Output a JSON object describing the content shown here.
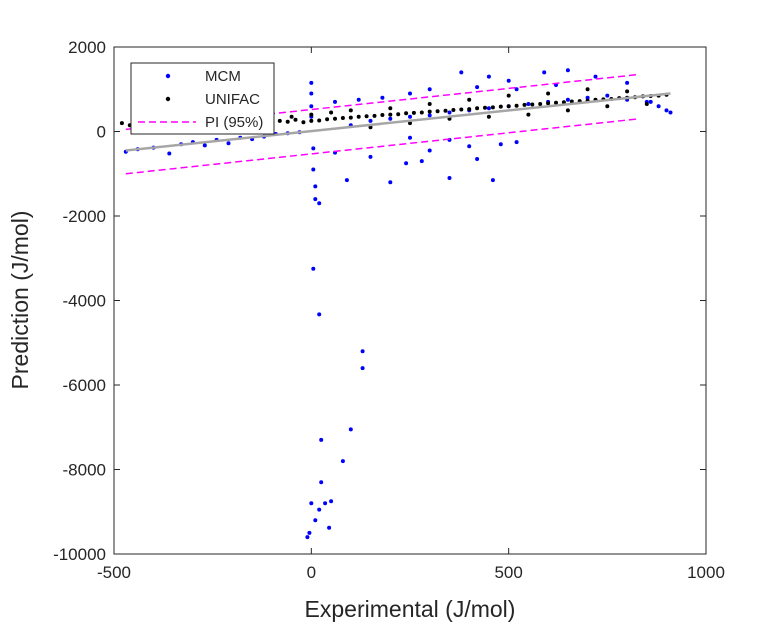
{
  "chart_data": {
    "type": "scatter",
    "xlabel": "Experimental (J/mol)",
    "ylabel": "Prediction (J/mol)",
    "xlim": [
      -500,
      1000
    ],
    "ylim": [
      -10000,
      2000
    ],
    "xticks": [
      -500,
      0,
      500,
      1000
    ],
    "yticks": [
      -10000,
      -8000,
      -6000,
      -4000,
      -2000,
      0,
      2000
    ],
    "legend_position": "top-left",
    "grid": false,
    "series": [
      {
        "name": "MCM",
        "color": "#0000ff",
        "marker": "dot",
        "points": [
          [
            -470,
            -480
          ],
          [
            -440,
            -420
          ],
          [
            -400,
            -380
          ],
          [
            -360,
            -520
          ],
          [
            -330,
            -300
          ],
          [
            -300,
            -250
          ],
          [
            -270,
            -330
          ],
          [
            -240,
            -200
          ],
          [
            -210,
            -280
          ],
          [
            -180,
            -150
          ],
          [
            -150,
            -180
          ],
          [
            -120,
            -120
          ],
          [
            -90,
            -60
          ],
          [
            -60,
            -40
          ],
          [
            -30,
            -20
          ],
          [
            0,
            1150
          ],
          [
            0,
            900
          ],
          [
            0,
            600
          ],
          [
            0,
            350
          ],
          [
            5,
            -400
          ],
          [
            5,
            -900
          ],
          [
            10,
            -1600
          ],
          [
            10,
            -1300
          ],
          [
            20,
            -1700
          ],
          [
            5,
            -3250
          ],
          [
            20,
            -4330
          ],
          [
            130,
            -5200
          ],
          [
            130,
            -5600
          ],
          [
            100,
            -7050
          ],
          [
            25,
            -7300
          ],
          [
            80,
            -7800
          ],
          [
            25,
            -8300
          ],
          [
            0,
            -8800
          ],
          [
            10,
            -9200
          ],
          [
            20,
            -8950
          ],
          [
            35,
            -8800
          ],
          [
            50,
            -8750
          ],
          [
            45,
            -9380
          ],
          [
            -10,
            -9600
          ],
          [
            -5,
            -9500
          ],
          [
            60,
            -500
          ],
          [
            90,
            -1150
          ],
          [
            150,
            -600
          ],
          [
            200,
            -1200
          ],
          [
            240,
            -750
          ],
          [
            280,
            -700
          ],
          [
            300,
            -450
          ],
          [
            350,
            -1100
          ],
          [
            420,
            -650
          ],
          [
            460,
            -1150
          ],
          [
            100,
            150
          ],
          [
            150,
            250
          ],
          [
            200,
            300
          ],
          [
            250,
            350
          ],
          [
            300,
            380
          ],
          [
            350,
            450
          ],
          [
            400,
            500
          ],
          [
            450,
            550
          ],
          [
            500,
            600
          ],
          [
            550,
            650
          ],
          [
            600,
            700
          ],
          [
            650,
            750
          ],
          [
            700,
            800
          ],
          [
            750,
            850
          ],
          [
            800,
            750
          ],
          [
            850,
            700
          ],
          [
            900,
            500
          ],
          [
            910,
            450
          ],
          [
            380,
            1400
          ],
          [
            450,
            1300
          ],
          [
            500,
            1200
          ],
          [
            590,
            1400
          ],
          [
            650,
            1450
          ],
          [
            720,
            1300
          ],
          [
            800,
            1150
          ],
          [
            860,
            700
          ],
          [
            880,
            600
          ],
          [
            300,
            1000
          ],
          [
            250,
            900
          ],
          [
            180,
            800
          ],
          [
            120,
            750
          ],
          [
            60,
            700
          ],
          [
            420,
            1050
          ],
          [
            520,
            1000
          ],
          [
            620,
            1100
          ],
          [
            480,
            -300
          ],
          [
            520,
            -250
          ],
          [
            400,
            -350
          ],
          [
            350,
            -200
          ],
          [
            250,
            -150
          ]
        ]
      },
      {
        "name": "UNIFAC",
        "color": "#000000",
        "marker": "dot",
        "points": [
          [
            -480,
            200
          ],
          [
            -460,
            150
          ],
          [
            -440,
            220
          ],
          [
            -420,
            180
          ],
          [
            -400,
            240
          ],
          [
            -380,
            160
          ],
          [
            -360,
            210
          ],
          [
            -340,
            170
          ],
          [
            -320,
            230
          ],
          [
            -300,
            190
          ],
          [
            -280,
            250
          ],
          [
            -260,
            150
          ],
          [
            -240,
            220
          ],
          [
            -220,
            200
          ],
          [
            -200,
            260
          ],
          [
            -180,
            180
          ],
          [
            -160,
            240
          ],
          [
            -140,
            210
          ],
          [
            -120,
            270
          ],
          [
            -100,
            200
          ],
          [
            -80,
            250
          ],
          [
            -60,
            230
          ],
          [
            -40,
            280
          ],
          [
            -20,
            220
          ],
          [
            0,
            250
          ],
          [
            20,
            260
          ],
          [
            40,
            290
          ],
          [
            60,
            300
          ],
          [
            80,
            320
          ],
          [
            100,
            330
          ],
          [
            120,
            350
          ],
          [
            140,
            360
          ],
          [
            160,
            370
          ],
          [
            180,
            390
          ],
          [
            200,
            400
          ],
          [
            220,
            410
          ],
          [
            240,
            430
          ],
          [
            260,
            440
          ],
          [
            280,
            450
          ],
          [
            300,
            470
          ],
          [
            320,
            480
          ],
          [
            340,
            490
          ],
          [
            360,
            510
          ],
          [
            380,
            520
          ],
          [
            400,
            530
          ],
          [
            420,
            550
          ],
          [
            440,
            560
          ],
          [
            460,
            570
          ],
          [
            480,
            590
          ],
          [
            500,
            600
          ],
          [
            520,
            610
          ],
          [
            540,
            630
          ],
          [
            560,
            640
          ],
          [
            580,
            650
          ],
          [
            600,
            670
          ],
          [
            620,
            680
          ],
          [
            640,
            690
          ],
          [
            660,
            710
          ],
          [
            680,
            720
          ],
          [
            700,
            730
          ],
          [
            720,
            750
          ],
          [
            740,
            760
          ],
          [
            760,
            770
          ],
          [
            780,
            790
          ],
          [
            800,
            800
          ],
          [
            820,
            810
          ],
          [
            840,
            830
          ],
          [
            860,
            840
          ],
          [
            880,
            850
          ],
          [
            900,
            870
          ],
          [
            150,
            100
          ],
          [
            250,
            200
          ],
          [
            350,
            300
          ],
          [
            450,
            350
          ],
          [
            550,
            400
          ],
          [
            650,
            500
          ],
          [
            750,
            600
          ],
          [
            850,
            650
          ],
          [
            200,
            550
          ],
          [
            300,
            650
          ],
          [
            400,
            750
          ],
          [
            500,
            850
          ],
          [
            600,
            900
          ],
          [
            700,
            1000
          ],
          [
            800,
            950
          ],
          [
            100,
            500
          ],
          [
            50,
            450
          ],
          [
            0,
            400
          ],
          [
            -50,
            350
          ],
          [
            -100,
            300
          ]
        ]
      }
    ],
    "lines": [
      {
        "name": "",
        "kind": "fit",
        "color": "#a6a6a6",
        "style": "solid",
        "x": [
          -470,
          910
        ],
        "y": [
          -450,
          900
        ]
      },
      {
        "name": "PI (95%)",
        "kind": "upper",
        "color": "#ff00ff",
        "style": "dashed",
        "x": [
          -470,
          830
        ],
        "y": [
          50,
          1350
        ]
      },
      {
        "name": "PI (95%)",
        "kind": "lower",
        "color": "#ff00ff",
        "style": "dashed",
        "x": [
          -470,
          830
        ],
        "y": [
          -1000,
          300
        ]
      }
    ],
    "legend": [
      {
        "label": "MCM",
        "type": "dot",
        "color": "#0000ff"
      },
      {
        "label": "UNIFAC",
        "type": "dot",
        "color": "#000000"
      },
      {
        "label": "PI (95%)",
        "type": "dashed",
        "color": "#ff00ff"
      }
    ]
  }
}
